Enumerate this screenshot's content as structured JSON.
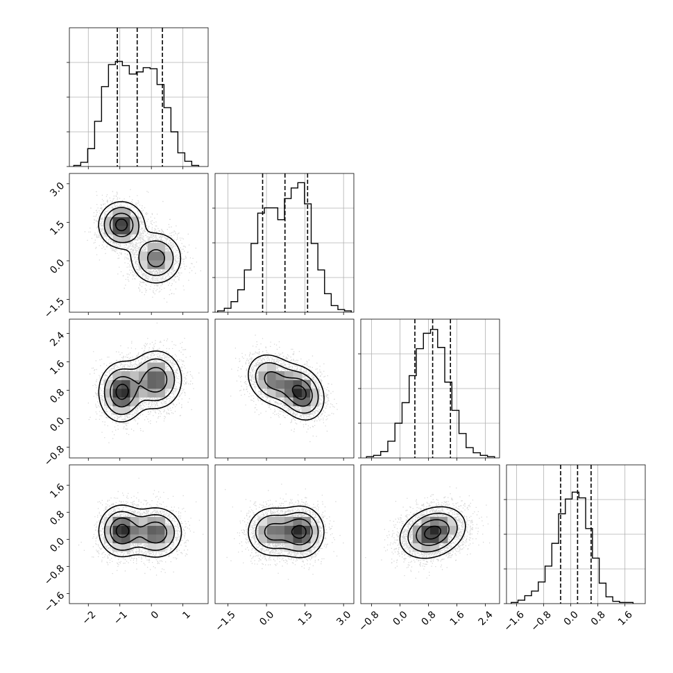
{
  "chart_data": {
    "type": "corner",
    "parameters": [
      {
        "range": [
          -2.6,
          1.8
        ],
        "ticks": [
          -2,
          -1,
          0,
          1
        ],
        "tick_labels": [
          "−2",
          "−1",
          "0",
          "1"
        ],
        "quantiles": [
          -1.08,
          -0.45,
          0.35
        ],
        "modes": [
          {
            "mean": -0.95,
            "sd": 0.36,
            "w": 0.5
          },
          {
            "mean": 0.15,
            "sd": 0.42,
            "w": 0.5
          }
        ]
      },
      {
        "range": [
          -2.0,
          3.4
        ],
        "ticks": [
          -1.5,
          0.0,
          1.5,
          3.0
        ],
        "tick_labels": [
          "−1.5",
          "0.0",
          "1.5",
          "3.0"
        ],
        "quantiles": [
          -0.15,
          0.72,
          1.6
        ],
        "modes": [
          {
            "mean": 0.2,
            "sd": 0.5,
            "w": 0.45
          },
          {
            "mean": 1.35,
            "sd": 0.45,
            "w": 0.55
          }
        ]
      },
      {
        "range": [
          -1.1,
          2.8
        ],
        "ticks": [
          -0.8,
          0.0,
          0.8,
          1.6,
          2.4
        ],
        "tick_labels": [
          "−0.8",
          "0.0",
          "0.8",
          "1.6",
          "2.4"
        ],
        "quantiles": [
          0.42,
          0.92,
          1.42
        ],
        "modes": [
          {
            "mean": 0.92,
            "sd": 0.46,
            "w": 1.0
          }
        ]
      },
      {
        "range": [
          -1.9,
          2.2
        ],
        "ticks": [
          -1.6,
          -0.8,
          0.0,
          0.8,
          1.6
        ],
        "tick_labels": [
          "−1.6",
          "−0.8",
          "0.0",
          "0.8",
          "1.6"
        ],
        "quantiles": [
          -0.3,
          0.2,
          0.6
        ],
        "modes": [
          {
            "mean": 0.2,
            "sd": 0.38,
            "w": 1.0
          }
        ]
      }
    ],
    "histogram": {
      "bins": 20,
      "panels": [
        {
          "edges": [
            -2.46,
            -2.24,
            -2.02,
            -1.8,
            -1.58,
            -1.36,
            -1.14,
            -0.92,
            -0.7,
            -0.48,
            -0.26,
            -0.04,
            0.18,
            0.4,
            0.62,
            0.84,
            1.06,
            1.28,
            1.5
          ],
          "counts": [
            0.01,
            0.04,
            0.17,
            0.43,
            0.76,
            0.97,
            1.0,
            0.96,
            0.88,
            0.9,
            0.94,
            0.93,
            0.78,
            0.56,
            0.33,
            0.13,
            0.05,
            0.01
          ]
        },
        {
          "edges": [
            -1.9,
            -1.64,
            -1.38,
            -1.12,
            -0.86,
            -0.6,
            -0.34,
            -0.08,
            0.18,
            0.44,
            0.7,
            0.96,
            1.22,
            1.48,
            1.74,
            2.0,
            2.26,
            2.52,
            2.78,
            3.04,
            3.3
          ],
          "counts": [
            0.01,
            0.03,
            0.08,
            0.17,
            0.32,
            0.52,
            0.75,
            0.79,
            0.79,
            0.7,
            0.86,
            0.94,
            0.98,
            0.82,
            0.52,
            0.32,
            0.14,
            0.05,
            0.02,
            0.01
          ]
        },
        {
          "edges": [
            -0.94,
            -0.74,
            -0.54,
            -0.34,
            -0.14,
            0.06,
            0.26,
            0.46,
            0.66,
            0.86,
            1.06,
            1.26,
            1.46,
            1.66,
            1.86,
            2.06,
            2.26,
            2.46,
            2.66
          ],
          "counts": [
            0.01,
            0.02,
            0.05,
            0.13,
            0.27,
            0.43,
            0.64,
            0.85,
            0.97,
            1.0,
            0.86,
            0.59,
            0.37,
            0.19,
            0.08,
            0.04,
            0.02,
            0.01
          ]
        },
        {
          "edges": [
            -1.76,
            -1.56,
            -1.36,
            -1.16,
            -0.96,
            -0.76,
            -0.56,
            -0.36,
            -0.16,
            0.04,
            0.24,
            0.44,
            0.64,
            0.84,
            1.04,
            1.24,
            1.44,
            1.64,
            1.84
          ],
          "counts": [
            0.01,
            0.03,
            0.07,
            0.11,
            0.19,
            0.33,
            0.53,
            0.79,
            0.92,
            0.98,
            0.93,
            0.66,
            0.4,
            0.18,
            0.06,
            0.02,
            0.01,
            0.01
          ]
        }
      ],
      "ymax": [
        1.32,
        1.05,
        1.08,
        1.22
      ]
    },
    "pairs": [
      {
        "x": 0,
        "y": 1,
        "samples": 3800,
        "rho": 0,
        "components": [
          {
            "mx": -0.95,
            "my": 1.4,
            "sx": 0.36,
            "sy": 0.45,
            "rho": 0.0,
            "w": 0.5
          },
          {
            "mx": 0.15,
            "my": 0.1,
            "sx": 0.42,
            "sy": 0.52,
            "rho": 0.0,
            "w": 0.5
          }
        ]
      },
      {
        "x": 0,
        "y": 2,
        "samples": 3800,
        "components": [
          {
            "mx": -0.95,
            "my": 0.75,
            "sx": 0.36,
            "sy": 0.42,
            "rho": 0.0,
            "w": 0.5
          },
          {
            "mx": 0.15,
            "my": 1.1,
            "sx": 0.42,
            "sy": 0.42,
            "rho": 0.0,
            "w": 0.5
          }
        ]
      },
      {
        "x": 1,
        "y": 2,
        "samples": 3800,
        "components": [
          {
            "mx": 0.2,
            "my": 1.1,
            "sx": 0.5,
            "sy": 0.38,
            "rho": -0.2,
            "w": 0.45
          },
          {
            "mx": 1.35,
            "my": 0.72,
            "sx": 0.45,
            "sy": 0.38,
            "rho": -0.2,
            "w": 0.55
          }
        ]
      },
      {
        "x": 0,
        "y": 3,
        "samples": 3800,
        "components": [
          {
            "mx": -0.95,
            "my": 0.25,
            "sx": 0.36,
            "sy": 0.38,
            "rho": 0.0,
            "w": 0.5
          },
          {
            "mx": 0.15,
            "my": 0.2,
            "sx": 0.42,
            "sy": 0.38,
            "rho": 0.0,
            "w": 0.5
          }
        ]
      },
      {
        "x": 1,
        "y": 3,
        "samples": 3800,
        "components": [
          {
            "mx": 0.2,
            "my": 0.22,
            "sx": 0.5,
            "sy": 0.38,
            "rho": 0.0,
            "w": 0.45
          },
          {
            "mx": 1.35,
            "my": 0.22,
            "sx": 0.45,
            "sy": 0.38,
            "rho": 0.0,
            "w": 0.55
          }
        ]
      },
      {
        "x": 2,
        "y": 3,
        "samples": 3800,
        "components": [
          {
            "mx": 0.92,
            "my": 0.2,
            "sx": 0.46,
            "sy": 0.38,
            "rho": 0.25,
            "w": 1.0
          }
        ]
      }
    ],
    "contour_levels": [
      0.5,
      1.0,
      1.5,
      2.0
    ],
    "grid": true,
    "colors": {
      "ink": "#000000",
      "grid": "#b0b0b0",
      "background": "#ffffff"
    }
  }
}
